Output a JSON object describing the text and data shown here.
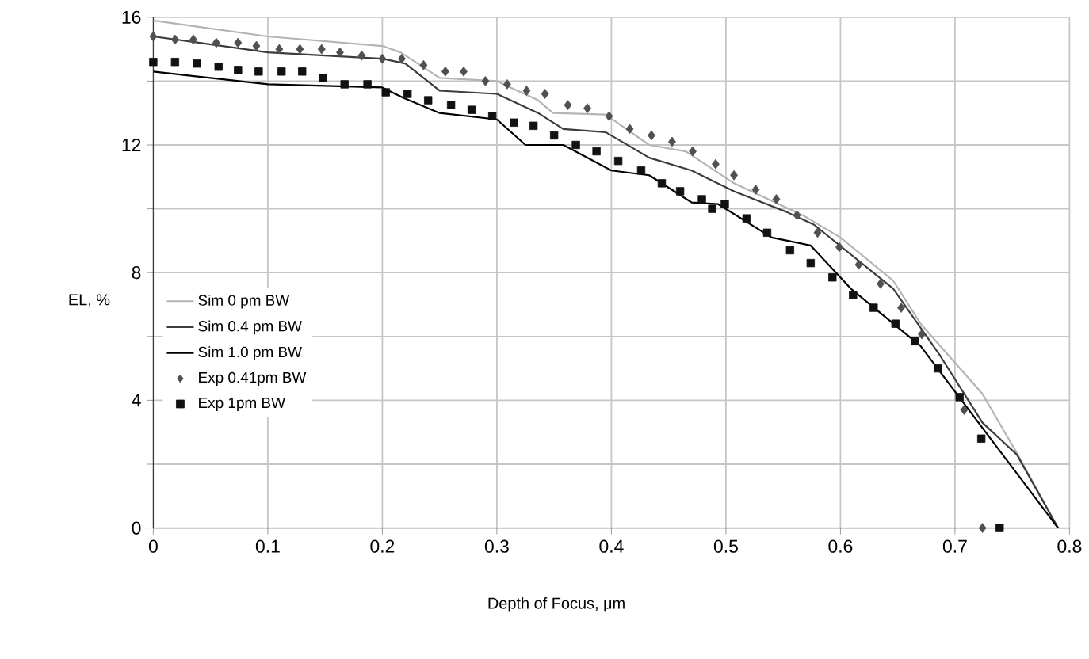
{
  "chart_data": {
    "type": "line",
    "xlabel": "Depth of Focus, μm",
    "ylabel": "EL, %",
    "xlim": [
      0,
      0.8
    ],
    "ylim": [
      0,
      16
    ],
    "xticks": [
      0,
      0.1,
      0.2,
      0.3,
      0.4,
      0.5,
      0.6,
      0.7,
      0.8
    ],
    "yticks": [
      0,
      {
        "value": 2,
        "label": null
      },
      4,
      {
        "value": 6,
        "label": null
      },
      8,
      {
        "value": 10,
        "label": null
      },
      12,
      {
        "value": 14,
        "label": null
      },
      16
    ],
    "grid": true,
    "legend": "left",
    "series": [
      {
        "name": "Sim 0 pm BW",
        "color": "#b4b4b4",
        "marker": "none",
        "line_style": "solid",
        "x": [
          0,
          0.1,
          0.2,
          0.216,
          0.25,
          0.3,
          0.336,
          0.349,
          0.395,
          0.433,
          0.465,
          0.507,
          0.567,
          0.6,
          0.646,
          0.67,
          0.724,
          0.754,
          0.79
        ],
        "values": [
          15.9,
          15.4,
          15.1,
          14.9,
          14.1,
          14.0,
          13.4,
          13.0,
          12.95,
          12.0,
          11.8,
          10.8,
          9.8,
          9.1,
          7.75,
          6.4,
          4.2,
          2.35,
          0
        ]
      },
      {
        "name": "Sim 0.4 pm BW",
        "color": "#3c3c3c",
        "marker": "none",
        "line_style": "solid",
        "x": [
          0,
          0.1,
          0.2,
          0.22,
          0.25,
          0.3,
          0.336,
          0.358,
          0.395,
          0.433,
          0.47,
          0.507,
          0.553,
          0.577,
          0.646,
          0.687,
          0.724,
          0.754,
          0.79
        ],
        "values": [
          15.4,
          14.9,
          14.7,
          14.55,
          13.7,
          13.6,
          13.0,
          12.5,
          12.4,
          11.6,
          11.2,
          10.55,
          9.9,
          9.5,
          7.5,
          5.4,
          3.3,
          2.3,
          0
        ]
      },
      {
        "name": "Sim 1.0 pm BW",
        "color": "#000000",
        "marker": "none",
        "line_style": "solid",
        "x": [
          0,
          0.1,
          0.2,
          0.22,
          0.25,
          0.3,
          0.325,
          0.358,
          0.4,
          0.433,
          0.47,
          0.493,
          0.54,
          0.574,
          0.609,
          0.67,
          0.79
        ],
        "values": [
          14.3,
          13.9,
          13.8,
          13.45,
          13.0,
          12.8,
          12.0,
          12.0,
          11.2,
          11.05,
          10.2,
          10.15,
          9.1,
          8.85,
          7.5,
          5.7,
          0
        ]
      },
      {
        "name": "Exp 0.41pm BW",
        "type": "scatter",
        "color": "#505050",
        "marker": "diamond",
        "x": [
          0,
          0.019,
          0.035,
          0.055,
          0.074,
          0.09,
          0.11,
          0.128,
          0.147,
          0.163,
          0.182,
          0.2,
          0.217,
          0.236,
          0.255,
          0.271,
          0.29,
          0.309,
          0.326,
          0.342,
          0.362,
          0.379,
          0.398,
          0.416,
          0.435,
          0.453,
          0.471,
          0.491,
          0.507,
          0.526,
          0.544,
          0.562,
          0.58,
          0.599,
          0.616,
          0.635,
          0.653,
          0.671,
          0.708,
          0.724
        ],
        "values": [
          15.4,
          15.3,
          15.3,
          15.2,
          15.2,
          15.1,
          15.0,
          15.0,
          15.0,
          14.9,
          14.8,
          14.7,
          14.7,
          14.5,
          14.3,
          14.3,
          14.0,
          13.9,
          13.7,
          13.6,
          13.25,
          13.15,
          12.9,
          12.5,
          12.3,
          12.1,
          11.8,
          11.4,
          11.05,
          10.6,
          10.3,
          9.8,
          9.25,
          8.8,
          8.25,
          7.65,
          6.9,
          6.07,
          3.7,
          0
        ]
      },
      {
        "name": "Exp 1pm BW",
        "type": "scatter",
        "color": "#111111",
        "marker": "square",
        "x": [
          0,
          0.019,
          0.038,
          0.057,
          0.074,
          0.092,
          0.112,
          0.13,
          0.148,
          0.167,
          0.187,
          0.203,
          0.222,
          0.24,
          0.26,
          0.278,
          0.296,
          0.315,
          0.332,
          0.35,
          0.369,
          0.387,
          0.406,
          0.426,
          0.444,
          0.46,
          0.479,
          0.488,
          0.499,
          0.518,
          0.536,
          0.556,
          0.574,
          0.593,
          0.611,
          0.629,
          0.648,
          0.665,
          0.685,
          0.704,
          0.723,
          0.739
        ],
        "values": [
          14.6,
          14.6,
          14.55,
          14.45,
          14.35,
          14.3,
          14.3,
          14.3,
          14.1,
          13.9,
          13.9,
          13.65,
          13.6,
          13.4,
          13.25,
          13.1,
          12.9,
          12.7,
          12.6,
          12.3,
          12.0,
          11.8,
          11.5,
          11.2,
          10.8,
          10.55,
          10.3,
          10.0,
          10.15,
          9.7,
          9.25,
          8.7,
          8.3,
          7.85,
          7.3,
          6.9,
          6.4,
          5.85,
          5.0,
          4.1,
          2.8,
          0
        ]
      }
    ]
  }
}
